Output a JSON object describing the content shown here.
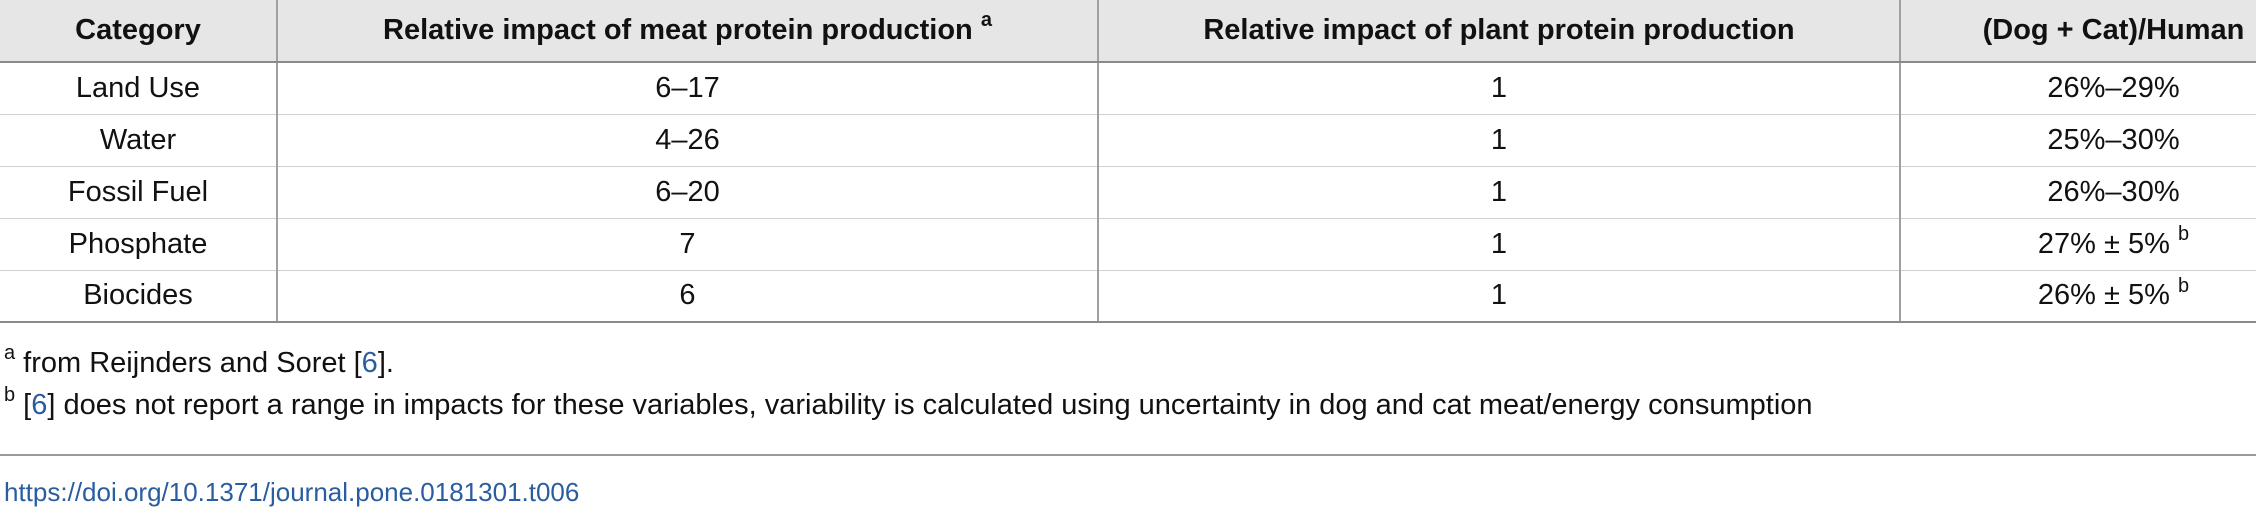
{
  "table": {
    "headers": {
      "category": "Category",
      "meat": "Relative impact of meat protein production",
      "meat_sup": "a",
      "plant": "Relative impact of plant protein production",
      "ratio": "(Dog + Cat)/Human"
    },
    "rows": [
      {
        "category": "Land Use",
        "meat": "6–17",
        "plant": "1",
        "ratio": "26%–29%",
        "ratio_sup": ""
      },
      {
        "category": "Water",
        "meat": "4–26",
        "plant": "1",
        "ratio": "25%–30%",
        "ratio_sup": ""
      },
      {
        "category": "Fossil Fuel",
        "meat": "6–20",
        "plant": "1",
        "ratio": "26%–30%",
        "ratio_sup": ""
      },
      {
        "category": "Phosphate",
        "meat": "7",
        "plant": "1",
        "ratio": "27% ± 5%",
        "ratio_sup": "b"
      },
      {
        "category": "Biocides",
        "meat": "6",
        "plant": "1",
        "ratio": "26% ± 5%",
        "ratio_sup": "b"
      }
    ]
  },
  "footnotes": {
    "a": {
      "marker": "a",
      "pre": " from Reijnders and Soret [",
      "ref": "6",
      "post": "]."
    },
    "b": {
      "marker": "b",
      "pre": " [",
      "ref": "6",
      "post": "] does not report a range in impacts for these variables, variability is calculated using uncertainty in dog and cat meat/energy consumption"
    }
  },
  "doi": "https://doi.org/10.1371/journal.pone.0181301.t006"
}
